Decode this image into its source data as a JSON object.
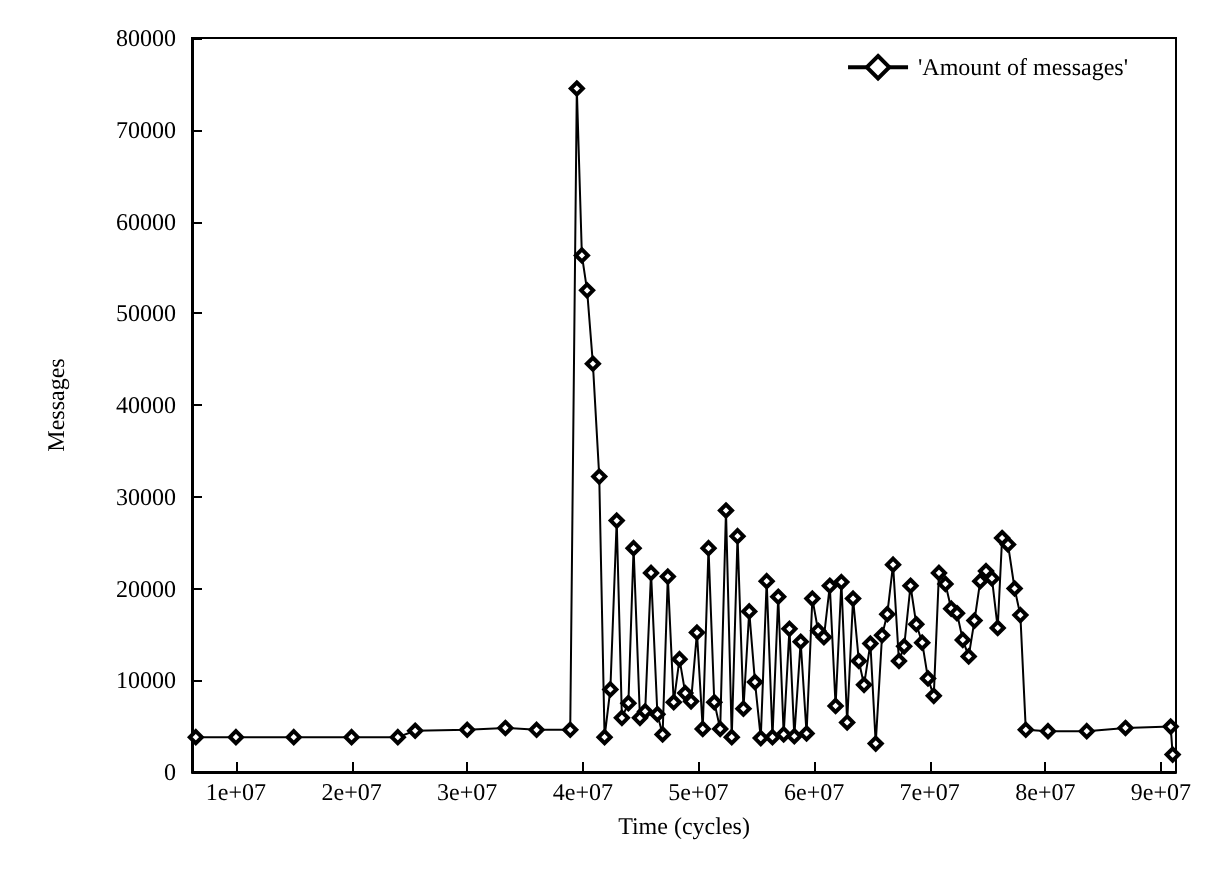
{
  "chart_data": {
    "type": "line",
    "xlabel": "Time (cycles)",
    "ylabel": "Messages",
    "legend": "top right",
    "marker": "diamond",
    "line_style": "solid",
    "grid": false,
    "xlim": [
      6200000,
      91300000
    ],
    "xticks": [
      {
        "value": 10000000,
        "label": "1e+07"
      },
      {
        "value": 20000000,
        "label": "2e+07"
      },
      {
        "value": 30000000,
        "label": "3e+07"
      },
      {
        "value": 40000000,
        "label": "4e+07"
      },
      {
        "value": 50000000,
        "label": "5e+07"
      },
      {
        "value": 60000000,
        "label": "6e+07"
      },
      {
        "value": 70000000,
        "label": "7e+07"
      },
      {
        "value": 80000000,
        "label": "8e+07"
      },
      {
        "value": 90000000,
        "label": "9e+07"
      }
    ],
    "ylim": [
      0,
      80000
    ],
    "yticks": [
      0,
      10000,
      20000,
      30000,
      40000,
      50000,
      60000,
      70000,
      80000
    ],
    "series": [
      {
        "name": "'Amount of messages'",
        "color": "#000000",
        "x": [
          6530000,
          10000000,
          15000000,
          20000000,
          24000000,
          25500000,
          30000000,
          33300000,
          36000000,
          38910000,
          39480000,
          39920000,
          40370000,
          40870000,
          41420000,
          41880000,
          42380000,
          42930000,
          43380000,
          43940000,
          44390000,
          44940000,
          45390000,
          45900000,
          46450000,
          46900000,
          47350000,
          47860000,
          48360000,
          48860000,
          49360000,
          49870000,
          50370000,
          50870000,
          51370000,
          51880000,
          52380000,
          52880000,
          53380000,
          53890000,
          54390000,
          54890000,
          55390000,
          55900000,
          56400000,
          56900000,
          57370000,
          57870000,
          58290000,
          58840000,
          59350000,
          59850000,
          60350000,
          60850000,
          61360000,
          61860000,
          62360000,
          62860000,
          63370000,
          63870000,
          64320000,
          64870000,
          65330000,
          65880000,
          66330000,
          66830000,
          67340000,
          67790000,
          68340000,
          68840000,
          69350000,
          69850000,
          70350000,
          70800000,
          71360000,
          71860000,
          72360000,
          72860000,
          73370000,
          73870000,
          74370000,
          74870000,
          75380000,
          75880000,
          76260000,
          76770000,
          77340000,
          77840000,
          78310000,
          80230000,
          83580000,
          86930000,
          90840000,
          91010000
        ],
        "values": [
          3800,
          3800,
          3800,
          3800,
          3800,
          4500,
          4600,
          4800,
          4600,
          4600,
          74500,
          56300,
          52500,
          44500,
          32200,
          3800,
          9000,
          27400,
          5900,
          7500,
          24400,
          5900,
          6600,
          21700,
          6300,
          4100,
          21300,
          7600,
          12300,
          8600,
          7700,
          15200,
          4700,
          24400,
          7600,
          4700,
          28500,
          3800,
          25700,
          6900,
          17500,
          9800,
          3700,
          20800,
          3800,
          19100,
          4100,
          15600,
          3900,
          14200,
          4200,
          18900,
          15400,
          14700,
          20300,
          7200,
          20700,
          5400,
          18900,
          12100,
          9500,
          14000,
          3100,
          14900,
          17200,
          22600,
          12100,
          13700,
          20300,
          16100,
          14100,
          10200,
          8300,
          21700,
          20500,
          17800,
          17300,
          14400,
          12600,
          16500,
          20800,
          21900,
          21100,
          15700,
          25500,
          24800,
          20000,
          17100,
          4600,
          4450,
          4450,
          4800,
          4950,
          1900
        ]
      }
    ]
  }
}
